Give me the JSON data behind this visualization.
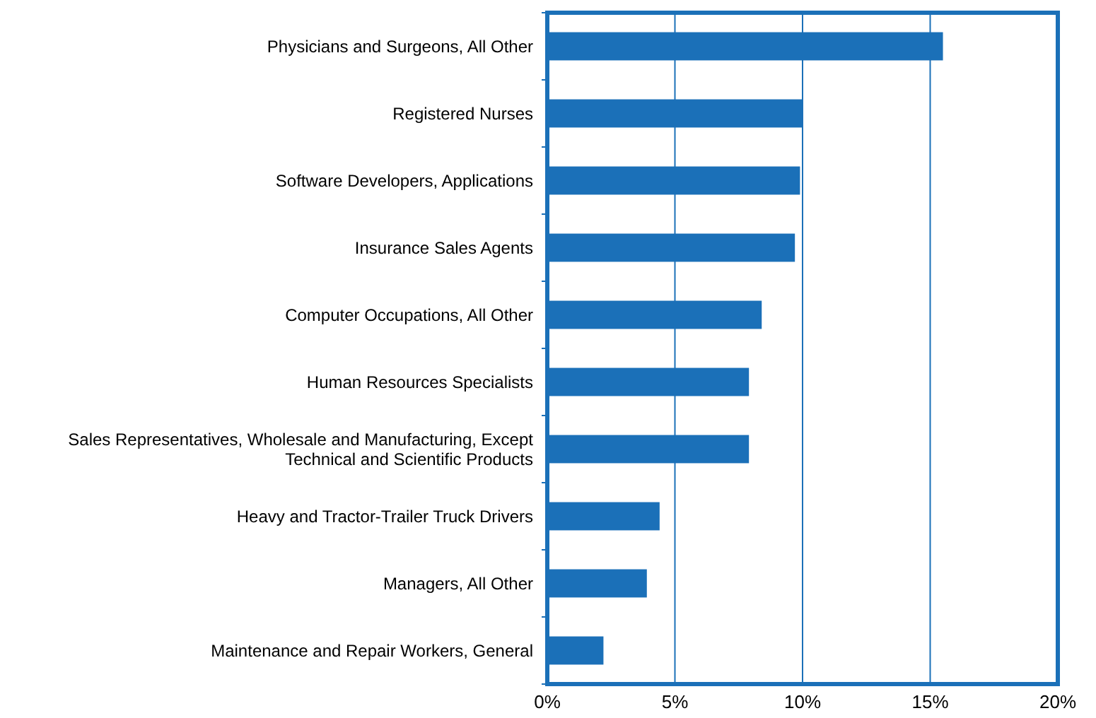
{
  "chart_data": {
    "type": "bar",
    "orientation": "horizontal",
    "categories": [
      "Physicians and Surgeons, All Other",
      "Registered Nurses",
      "Software Developers, Applications",
      "Insurance Sales Agents",
      "Computer Occupations, All Other",
      "Human Resources Specialists",
      "Sales Representatives, Wholesale and Manufacturing, Except Technical and Scientific Products",
      "Heavy and Tractor-Trailer Truck Drivers",
      "Managers, All Other",
      "Maintenance and Repair Workers, General"
    ],
    "values": [
      15.5,
      10.0,
      9.9,
      9.7,
      8.4,
      7.9,
      7.9,
      4.4,
      3.9,
      2.2
    ],
    "color": "#1b70b8",
    "xlim": [
      0,
      20
    ],
    "xticks": [
      {
        "value": 0,
        "label": "0%"
      },
      {
        "value": 5,
        "label": "5%"
      },
      {
        "value": 10,
        "label": "10%"
      },
      {
        "value": 15,
        "label": "15%"
      },
      {
        "value": 20,
        "label": "20%"
      }
    ],
    "grid": "x"
  }
}
